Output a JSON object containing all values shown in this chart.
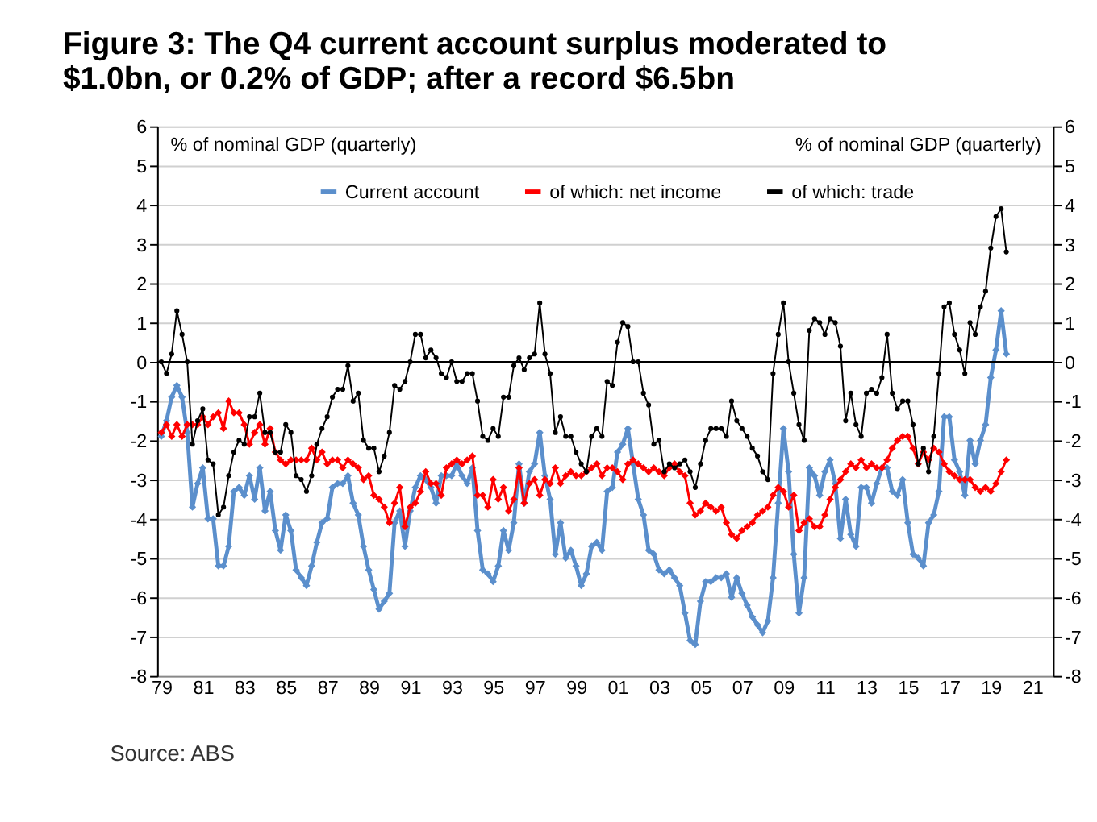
{
  "chart_data": {
    "type": "line",
    "title": "Figure 3: The Q4 current account surplus moderated to $1.0bn, or 0.2% of GDP; after a record $6.5bn",
    "ylabel": "% of nominal GDP (quarterly)",
    "y2label": "% of nominal GDP (quarterly)",
    "annotations": [
      "Source: ABS"
    ],
    "x": [
      1979,
      1979.25,
      1979.5,
      1979.75,
      1980,
      1980.25,
      1980.5,
      1980.75,
      1981,
      1981.25,
      1981.5,
      1981.75,
      1982,
      1982.25,
      1982.5,
      1982.75,
      1983,
      1983.25,
      1983.5,
      1983.75,
      1984,
      1984.25,
      1984.5,
      1984.75,
      1985,
      1985.25,
      1985.5,
      1985.75,
      1986,
      1986.25,
      1986.5,
      1986.75,
      1987,
      1987.25,
      1987.5,
      1987.75,
      1988,
      1988.25,
      1988.5,
      1988.75,
      1989,
      1989.25,
      1989.5,
      1989.75,
      1990,
      1990.25,
      1990.5,
      1990.75,
      1991,
      1991.25,
      1991.5,
      1991.75,
      1992,
      1992.25,
      1992.5,
      1992.75,
      1993,
      1993.25,
      1993.5,
      1993.75,
      1994,
      1994.25,
      1994.5,
      1994.75,
      1995,
      1995.25,
      1995.5,
      1995.75,
      1996,
      1996.25,
      1996.5,
      1996.75,
      1997,
      1997.25,
      1997.5,
      1997.75,
      1998,
      1998.25,
      1998.5,
      1998.75,
      1999,
      1999.25,
      1999.5,
      1999.75,
      2000,
      2000.25,
      2000.5,
      2000.75,
      2001,
      2001.25,
      2001.5,
      2001.75,
      2002,
      2002.25,
      2002.5,
      2002.75,
      2003,
      2003.25,
      2003.5,
      2003.75,
      2004,
      2004.25,
      2004.5,
      2004.75,
      2005,
      2005.25,
      2005.5,
      2005.75,
      2006,
      2006.25,
      2006.5,
      2006.75,
      2007,
      2007.25,
      2007.5,
      2007.75,
      2008,
      2008.25,
      2008.5,
      2008.75,
      2009,
      2009.25,
      2009.5,
      2009.75,
      2010,
      2010.25,
      2010.5,
      2010.75,
      2011,
      2011.25,
      2011.5,
      2011.75,
      2012,
      2012.25,
      2012.5,
      2012.75,
      2013,
      2013.25,
      2013.5,
      2013.75,
      2014,
      2014.25,
      2014.5,
      2014.75,
      2015,
      2015.25,
      2015.5,
      2015.75,
      2016,
      2016.25,
      2016.5,
      2016.75,
      2017,
      2017.25,
      2017.5,
      2017.75,
      2018,
      2018.25,
      2018.5,
      2018.75,
      2019,
      2019.25,
      2019.5,
      2019.75
    ],
    "series": [
      {
        "name": "Current account",
        "color": "#5b8fcc",
        "marker": "diamond",
        "values": [
          -1.9,
          -1.5,
          -0.9,
          -0.6,
          -0.9,
          -1.8,
          -3.7,
          -3.1,
          -2.7,
          -4.0,
          -4.0,
          -5.2,
          -5.2,
          -4.7,
          -3.3,
          -3.2,
          -3.4,
          -2.9,
          -3.5,
          -2.7,
          -3.8,
          -3.3,
          -4.3,
          -4.8,
          -3.9,
          -4.3,
          -5.3,
          -5.5,
          -5.7,
          -5.2,
          -4.6,
          -4.1,
          -4.0,
          -3.2,
          -3.1,
          -3.1,
          -2.9,
          -3.6,
          -3.9,
          -4.7,
          -5.3,
          -5.8,
          -6.3,
          -6.1,
          -5.9,
          -4.1,
          -3.8,
          -4.7,
          -3.8,
          -3.2,
          -2.9,
          -3.0,
          -3.2,
          -3.6,
          -2.9,
          -2.9,
          -2.9,
          -2.6,
          -2.9,
          -3.1,
          -2.7,
          -4.3,
          -5.3,
          -5.4,
          -5.6,
          -5.2,
          -4.3,
          -4.8,
          -4.1,
          -2.6,
          -3.6,
          -2.8,
          -2.6,
          -1.8,
          -2.9,
          -3.5,
          -4.9,
          -4.1,
          -5.0,
          -4.8,
          -5.2,
          -5.7,
          -5.4,
          -4.7,
          -4.6,
          -4.8,
          -3.3,
          -3.2,
          -2.3,
          -2.1,
          -1.7,
          -2.6,
          -3.5,
          -3.9,
          -4.8,
          -4.9,
          -5.3,
          -5.4,
          -5.3,
          -5.5,
          -5.7,
          -6.4,
          -7.1,
          -7.2,
          -6.1,
          -5.6,
          -5.6,
          -5.5,
          -5.5,
          -5.4,
          -6.0,
          -5.5,
          -5.9,
          -6.2,
          -6.5,
          -6.7,
          -6.9,
          -6.6,
          -5.5,
          -3.6,
          -1.7,
          -2.8,
          -4.9,
          -6.4,
          -5.5,
          -2.7,
          -2.9,
          -3.4,
          -2.8,
          -2.5,
          -3.1,
          -4.5,
          -3.5,
          -4.4,
          -4.7,
          -3.2,
          -3.2,
          -3.6,
          -3.1,
          -2.7,
          -2.7,
          -3.3,
          -3.4,
          -3.0,
          -4.1,
          -4.9,
          -5.0,
          -5.2,
          -4.1,
          -3.9,
          -3.3,
          -1.4,
          -1.4,
          -2.5,
          -2.8,
          -3.4,
          -2.0,
          -2.6,
          -2.0,
          -1.6,
          -0.4,
          0.3,
          1.3,
          0.2
        ]
      },
      {
        "name": "of which: net income",
        "color": "#ff0000",
        "marker": "diamond",
        "values": [
          -1.8,
          -1.6,
          -1.9,
          -1.6,
          -1.9,
          -1.6,
          -1.6,
          -1.6,
          -1.4,
          -1.6,
          -1.4,
          -1.3,
          -1.7,
          -1.0,
          -1.3,
          -1.3,
          -1.6,
          -2.1,
          -1.8,
          -1.6,
          -2.1,
          -1.7,
          -2.3,
          -2.5,
          -2.6,
          -2.5,
          -2.5,
          -2.5,
          -2.5,
          -2.2,
          -2.5,
          -2.3,
          -2.6,
          -2.5,
          -2.5,
          -2.7,
          -2.5,
          -2.6,
          -2.7,
          -3.0,
          -2.9,
          -3.4,
          -3.5,
          -3.7,
          -4.1,
          -3.6,
          -3.2,
          -4.2,
          -3.7,
          -3.6,
          -3.3,
          -2.8,
          -3.1,
          -3.1,
          -3.4,
          -2.7,
          -2.6,
          -2.5,
          -2.6,
          -2.5,
          -2.4,
          -3.4,
          -3.4,
          -3.7,
          -3.0,
          -3.5,
          -3.2,
          -3.8,
          -3.5,
          -2.7,
          -3.6,
          -3.1,
          -3.0,
          -3.4,
          -3.0,
          -3.1,
          -2.7,
          -3.1,
          -2.9,
          -2.8,
          -2.9,
          -2.9,
          -2.8,
          -2.7,
          -2.6,
          -2.9,
          -2.7,
          -2.7,
          -2.8,
          -3.0,
          -2.6,
          -2.5,
          -2.6,
          -2.7,
          -2.8,
          -2.7,
          -2.8,
          -2.9,
          -2.7,
          -2.6,
          -2.8,
          -2.9,
          -3.6,
          -3.9,
          -3.8,
          -3.6,
          -3.7,
          -3.8,
          -3.7,
          -4.1,
          -4.4,
          -4.5,
          -4.3,
          -4.2,
          -4.1,
          -3.9,
          -3.8,
          -3.7,
          -3.4,
          -3.2,
          -3.3,
          -3.7,
          -3.4,
          -4.3,
          -4.1,
          -4.0,
          -4.2,
          -4.2,
          -3.9,
          -3.5,
          -3.2,
          -3.0,
          -2.8,
          -2.6,
          -2.7,
          -2.5,
          -2.7,
          -2.6,
          -2.7,
          -2.7,
          -2.5,
          -2.2,
          -2.0,
          -1.9,
          -1.9,
          -2.2,
          -2.6,
          -2.3,
          -2.5,
          -2.2,
          -2.3,
          -2.6,
          -2.8,
          -2.9,
          -3.0,
          -3.0,
          -3.0,
          -3.2,
          -3.3,
          -3.2,
          -3.3,
          -3.1,
          -2.8,
          -2.5
        ]
      },
      {
        "name": "of which: trade",
        "color": "#000000",
        "marker": "circle",
        "values": [
          0,
          -0.3,
          0.2,
          1.3,
          0.7,
          0,
          -2.1,
          -1.5,
          -1.2,
          -2.5,
          -2.6,
          -3.9,
          -3.7,
          -2.9,
          -2.3,
          -2.0,
          -2.1,
          -1.4,
          -1.4,
          -0.8,
          -1.8,
          -1.8,
          -2.3,
          -2.3,
          -1.6,
          -1.8,
          -2.9,
          -3.0,
          -3.3,
          -2.9,
          -2.1,
          -1.7,
          -1.4,
          -0.9,
          -0.7,
          -0.7,
          -0.1,
          -1.0,
          -0.8,
          -2.0,
          -2.2,
          -2.2,
          -2.8,
          -2.4,
          -1.8,
          -0.6,
          -0.7,
          -0.5,
          0,
          0.7,
          0.7,
          0.1,
          0.3,
          0.1,
          -0.3,
          -0.4,
          0,
          -0.5,
          -0.5,
          -0.3,
          -0.3,
          -1.0,
          -1.9,
          -2.0,
          -1.7,
          -1.9,
          -0.9,
          -0.9,
          -0.1,
          0.1,
          -0.2,
          0.1,
          0.2,
          1.5,
          0.2,
          -0.3,
          -1.8,
          -1.4,
          -1.9,
          -1.9,
          -2.3,
          -2.6,
          -2.8,
          -1.9,
          -1.7,
          -1.9,
          -0.5,
          -0.6,
          0.5,
          1.0,
          0.9,
          0,
          0,
          -0.8,
          -1.1,
          -2.1,
          -2.0,
          -2.8,
          -2.6,
          -2.7,
          -2.6,
          -2.5,
          -2.8,
          -3.2,
          -2.6,
          -2.0,
          -1.7,
          -1.7,
          -1.7,
          -1.9,
          -1.0,
          -1.5,
          -1.7,
          -1.9,
          -2.2,
          -2.4,
          -2.8,
          -3.0,
          -0.3,
          0.7,
          1.5,
          0,
          -0.8,
          -1.6,
          -2.0,
          0.8,
          1.1,
          1.0,
          0.7,
          1.1,
          1.0,
          0.4,
          -1.5,
          -0.8,
          -1.6,
          -1.9,
          -0.8,
          -0.7,
          -0.8,
          -0.4,
          0.7,
          -0.8,
          -1.2,
          -1.0,
          -1.0,
          -1.6,
          -2.6,
          -2.2,
          -2.8,
          -1.9,
          -0.3,
          1.4,
          1.5,
          0.7,
          0.3,
          -0.3,
          1.0,
          0.7,
          1.4,
          1.8,
          2.9,
          3.7,
          3.9,
          2.8
        ]
      }
    ],
    "xlim": [
      1978.8,
      2022
    ],
    "xticks": [
      {
        "value": 1979,
        "label": "79"
      },
      {
        "value": 1981,
        "label": "81"
      },
      {
        "value": 1983,
        "label": "83"
      },
      {
        "value": 1985,
        "label": "85"
      },
      {
        "value": 1987,
        "label": "87"
      },
      {
        "value": 1989,
        "label": "89"
      },
      {
        "value": 1991,
        "label": "91"
      },
      {
        "value": 1993,
        "label": "93"
      },
      {
        "value": 1995,
        "label": "95"
      },
      {
        "value": 1997,
        "label": "97"
      },
      {
        "value": 1999,
        "label": "99"
      },
      {
        "value": 2001,
        "label": "01"
      },
      {
        "value": 2003,
        "label": "03"
      },
      {
        "value": 2005,
        "label": "05"
      },
      {
        "value": 2007,
        "label": "07"
      },
      {
        "value": 2009,
        "label": "09"
      },
      {
        "value": 2011,
        "label": "11"
      },
      {
        "value": 2013,
        "label": "13"
      },
      {
        "value": 2015,
        "label": "15"
      },
      {
        "value": 2017,
        "label": "17"
      },
      {
        "value": 2019,
        "label": "19"
      },
      {
        "value": 2021,
        "label": "21"
      }
    ],
    "ylim": [
      -8,
      6
    ],
    "yticks": [
      -8,
      -7,
      -6,
      -5,
      -4,
      -3,
      -2,
      -1,
      0,
      1,
      2,
      3,
      4,
      5,
      6
    ],
    "y2lim": [
      -8,
      6
    ],
    "y2ticks": [
      -8,
      -7,
      -6,
      -5,
      -4,
      -3,
      -2,
      -1,
      0,
      1,
      2,
      3,
      4,
      5,
      6
    ],
    "ref_lines": [
      {
        "axis": "y",
        "value": 0,
        "color": "#000000"
      }
    ],
    "grid": "y",
    "legend": "top"
  }
}
